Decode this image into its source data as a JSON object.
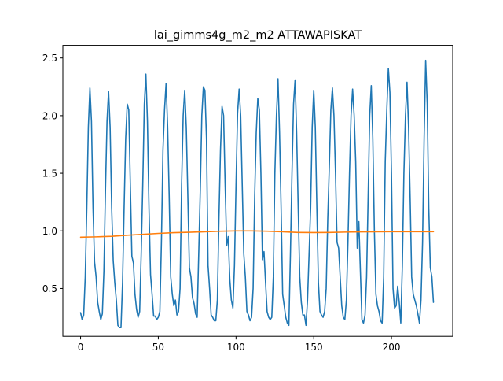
{
  "chart_data": {
    "type": "line",
    "title": "lai_gimms4g_m2_m2 ATTAWAPISKAT",
    "xlabel": "",
    "ylabel": "",
    "xlim": [
      -11.4,
      239.4
    ],
    "ylim": [
      0.085,
      2.61
    ],
    "xticks": [
      0,
      50,
      100,
      150,
      200
    ],
    "yticks": [
      0.5,
      1.0,
      1.5,
      2.0,
      2.5
    ],
    "xtick_labels": [
      "0",
      "50",
      "100",
      "150",
      "200"
    ],
    "ytick_labels": [
      "0.5",
      "1.0",
      "1.5",
      "2.0",
      "2.5"
    ],
    "grid": false,
    "legend": "none",
    "series": [
      {
        "color": "#1f77b4",
        "x": [
          0,
          1,
          2,
          3,
          4,
          5,
          6,
          7,
          8,
          9,
          10,
          11,
          12,
          13,
          14,
          15,
          16,
          17,
          18,
          19,
          20,
          21,
          22,
          23,
          24,
          25,
          26,
          27,
          28,
          29,
          30,
          31,
          32,
          33,
          34,
          35,
          36,
          37,
          38,
          39,
          40,
          41,
          42,
          43,
          44,
          45,
          46,
          47,
          48,
          49,
          50,
          51,
          52,
          53,
          54,
          55,
          56,
          57,
          58,
          59,
          60,
          61,
          62,
          63,
          64,
          65,
          66,
          67,
          68,
          69,
          70,
          71,
          72,
          73,
          74,
          75,
          76,
          77,
          78,
          79,
          80,
          81,
          82,
          83,
          84,
          85,
          86,
          87,
          88,
          89,
          90,
          91,
          92,
          93,
          94,
          95,
          96,
          97,
          98,
          99,
          100,
          101,
          102,
          103,
          104,
          105,
          106,
          107,
          108,
          109,
          110,
          111,
          112,
          113,
          114,
          115,
          116,
          117,
          118,
          119,
          120,
          121,
          122,
          123,
          124,
          125,
          126,
          127,
          128,
          129,
          130,
          131,
          132,
          133,
          134,
          135,
          136,
          137,
          138,
          139,
          140,
          141,
          142,
          143,
          144,
          145,
          146,
          147,
          148,
          149,
          150,
          151,
          152,
          153,
          154,
          155,
          156,
          157,
          158,
          159,
          160,
          161,
          162,
          163,
          164,
          165,
          166,
          167,
          168,
          169,
          170,
          171,
          172,
          173,
          174,
          175,
          176,
          177,
          178,
          179,
          180,
          181,
          182,
          183,
          184,
          185,
          186,
          187,
          188,
          189,
          190,
          191,
          192,
          193,
          194,
          195,
          196,
          197,
          198,
          199,
          200,
          201,
          202,
          203,
          204,
          205,
          206,
          207,
          208,
          209,
          210,
          211,
          212,
          213,
          214,
          215,
          216,
          217,
          218,
          219,
          220,
          221,
          222,
          223,
          224,
          225,
          226,
          227
        ],
        "y": [
          0.29,
          0.23,
          0.27,
          0.6,
          1.2,
          1.9,
          2.24,
          1.95,
          1.2,
          0.73,
          0.6,
          0.38,
          0.3,
          0.23,
          0.28,
          0.65,
          1.35,
          1.95,
          2.21,
          1.9,
          1.2,
          0.74,
          0.55,
          0.4,
          0.18,
          0.16,
          0.16,
          0.55,
          1.2,
          1.8,
          2.1,
          2.05,
          1.4,
          0.78,
          0.72,
          0.45,
          0.32,
          0.25,
          0.3,
          0.8,
          1.4,
          2.1,
          2.36,
          1.95,
          1.2,
          0.62,
          0.45,
          0.26,
          0.26,
          0.23,
          0.25,
          0.3,
          0.9,
          1.7,
          2.05,
          2.28,
          1.9,
          1.3,
          0.6,
          0.45,
          0.35,
          0.4,
          0.27,
          0.3,
          0.5,
          1.4,
          2.0,
          2.22,
          1.9,
          1.3,
          0.68,
          0.6,
          0.42,
          0.37,
          0.28,
          0.25,
          0.8,
          1.35,
          2.0,
          2.25,
          2.22,
          1.8,
          0.7,
          0.5,
          0.27,
          0.25,
          0.22,
          0.22,
          0.4,
          1.1,
          1.7,
          2.08,
          2.0,
          1.4,
          0.87,
          0.95,
          0.58,
          0.4,
          0.33,
          0.7,
          1.4,
          2.02,
          2.23,
          2.0,
          1.4,
          0.8,
          0.6,
          0.3,
          0.27,
          0.22,
          0.25,
          0.5,
          1.3,
          1.85,
          2.15,
          2.05,
          1.5,
          0.75,
          0.82,
          0.55,
          0.3,
          0.25,
          0.23,
          0.25,
          0.6,
          1.5,
          2.0,
          2.32,
          1.85,
          1.2,
          0.45,
          0.35,
          0.25,
          0.2,
          0.18,
          0.8,
          1.5,
          2.1,
          2.31,
          1.85,
          1.2,
          0.6,
          0.38,
          0.27,
          0.27,
          0.18,
          0.4,
          0.8,
          1.2,
          1.9,
          2.22,
          1.9,
          1.2,
          0.55,
          0.3,
          0.27,
          0.25,
          0.3,
          0.5,
          1.1,
          1.55,
          2.05,
          2.24,
          2.0,
          1.5,
          0.9,
          0.85,
          0.6,
          0.35,
          0.25,
          0.23,
          0.4,
          0.9,
          1.5,
          2.0,
          2.23,
          2.0,
          1.6,
          0.85,
          1.08,
          0.65,
          0.23,
          0.2,
          0.27,
          0.6,
          1.3,
          2.0,
          2.26,
          1.8,
          1.0,
          0.45,
          0.35,
          0.3,
          0.22,
          0.2,
          0.6,
          1.6,
          2.05,
          2.41,
          2.2,
          1.5,
          0.5,
          0.33,
          0.35,
          0.52,
          0.38,
          0.2,
          0.7,
          1.5,
          2.0,
          2.29,
          1.9,
          1.3,
          0.6,
          0.45,
          0.4,
          0.35,
          0.28,
          0.2,
          0.4,
          0.9,
          1.8,
          2.48,
          2.1,
          1.2,
          0.68,
          0.6,
          0.38
        ]
      },
      {
        "color": "#ff7f0e",
        "x": [
          0,
          10,
          20,
          30,
          40,
          50,
          60,
          70,
          80,
          90,
          100,
          110,
          120,
          130,
          140,
          150,
          160,
          170,
          180,
          190,
          200,
          210,
          220,
          227
        ],
        "y": [
          0.945,
          0.948,
          0.953,
          0.962,
          0.97,
          0.978,
          0.984,
          0.988,
          0.992,
          0.997,
          1.0,
          1.0,
          0.997,
          0.992,
          0.986,
          0.985,
          0.986,
          0.989,
          0.991,
          0.992,
          0.993,
          0.993,
          0.993,
          0.993
        ]
      }
    ]
  }
}
